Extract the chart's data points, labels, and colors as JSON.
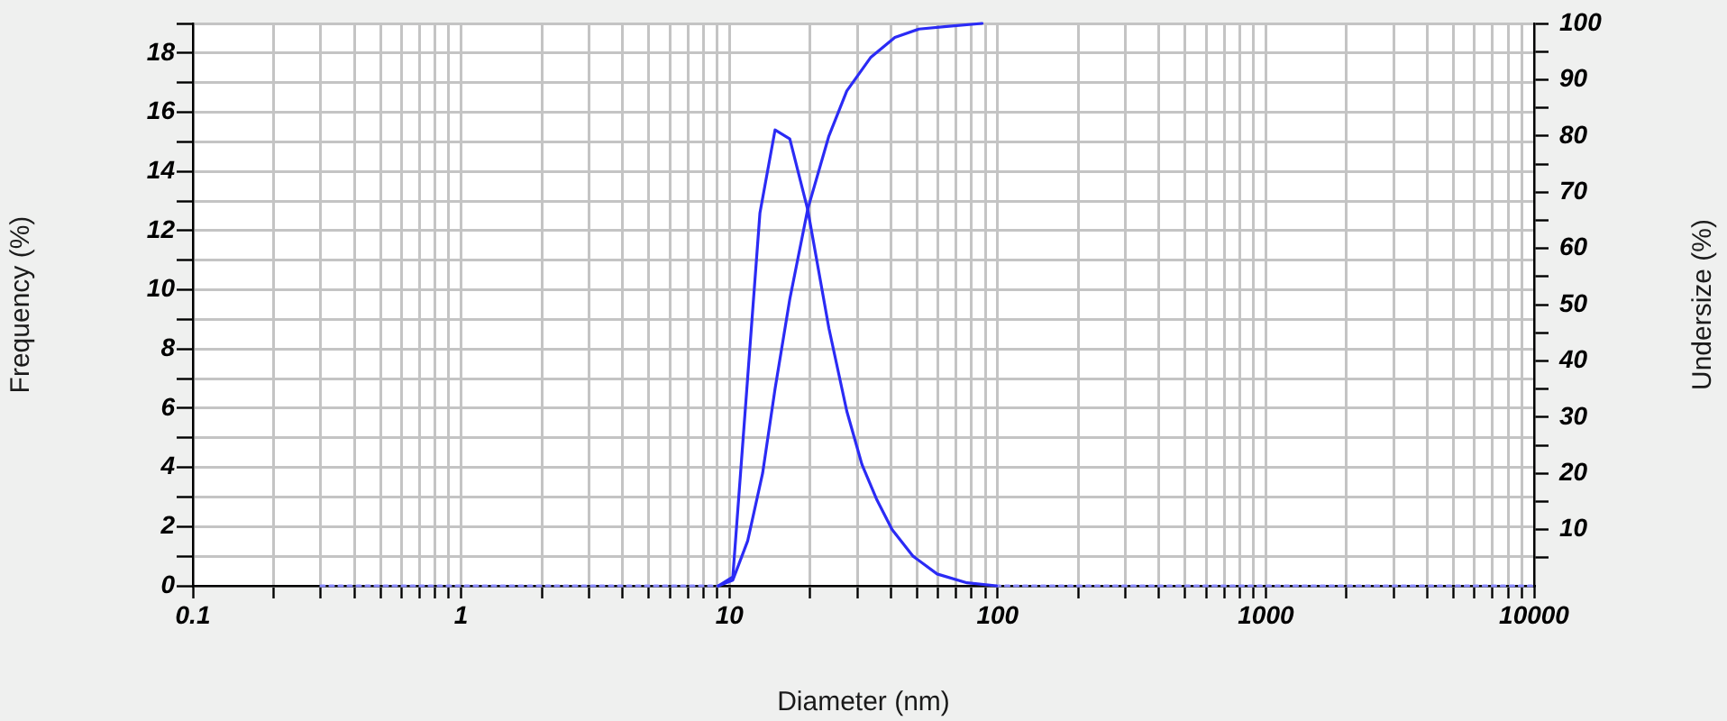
{
  "chart_data": {
    "type": "line",
    "xlabel": "Diameter (nm)",
    "ylabel": "Frequency (%)",
    "y2label": "Undersize (%)",
    "log": "x",
    "grid": true,
    "legend": false,
    "marker": "none",
    "xlim": [
      0.1,
      10000
    ],
    "xticks": [
      0.1,
      {
        "value": 0.2,
        "label": null
      },
      {
        "value": 0.3,
        "label": null
      },
      {
        "value": 0.4,
        "label": null
      },
      {
        "value": 0.5,
        "label": null
      },
      {
        "value": 0.6,
        "label": null
      },
      {
        "value": 0.7,
        "label": null
      },
      {
        "value": 0.8,
        "label": null
      },
      {
        "value": 0.9,
        "label": null
      },
      1,
      {
        "value": 2,
        "label": null
      },
      {
        "value": 3,
        "label": null
      },
      {
        "value": 4,
        "label": null
      },
      {
        "value": 5,
        "label": null
      },
      {
        "value": 6,
        "label": null
      },
      {
        "value": 7,
        "label": null
      },
      {
        "value": 8,
        "label": null
      },
      {
        "value": 9,
        "label": null
      },
      10,
      {
        "value": 20,
        "label": null
      },
      {
        "value": 30,
        "label": null
      },
      {
        "value": 40,
        "label": null
      },
      {
        "value": 50,
        "label": null
      },
      {
        "value": 60,
        "label": null
      },
      {
        "value": 70,
        "label": null
      },
      {
        "value": 80,
        "label": null
      },
      {
        "value": 90,
        "label": null
      },
      100,
      {
        "value": 200,
        "label": null
      },
      {
        "value": 300,
        "label": null
      },
      {
        "value": 400,
        "label": null
      },
      {
        "value": 500,
        "label": null
      },
      {
        "value": 600,
        "label": null
      },
      {
        "value": 700,
        "label": null
      },
      {
        "value": 800,
        "label": null
      },
      {
        "value": 900,
        "label": null
      },
      1000,
      {
        "value": 2000,
        "label": null
      },
      {
        "value": 3000,
        "label": null
      },
      {
        "value": 4000,
        "label": null
      },
      {
        "value": 5000,
        "label": null
      },
      {
        "value": 6000,
        "label": null
      },
      {
        "value": 7000,
        "label": null
      },
      {
        "value": 8000,
        "label": null
      },
      {
        "value": 9000,
        "label": null
      },
      10000
    ],
    "ylim": [
      0,
      19
    ],
    "yticks": [
      0,
      {
        "value": 1,
        "label": null
      },
      2,
      {
        "value": 3,
        "label": null
      },
      4,
      {
        "value": 5,
        "label": null
      },
      6,
      {
        "value": 7,
        "label": null
      },
      8,
      {
        "value": 9,
        "label": null
      },
      10,
      {
        "value": 11,
        "label": null
      },
      12,
      {
        "value": 13,
        "label": null
      },
      14,
      {
        "value": 15,
        "label": null
      },
      16,
      {
        "value": 17,
        "label": null
      },
      18,
      {
        "value": 19,
        "label": null
      }
    ],
    "y2lim": [
      0,
      100
    ],
    "y2ticks": [
      {
        "value": 5,
        "label": null
      },
      10,
      {
        "value": 15,
        "label": null
      },
      20,
      {
        "value": 25,
        "label": null
      },
      30,
      {
        "value": 35,
        "label": null
      },
      40,
      {
        "value": 45,
        "label": null
      },
      50,
      {
        "value": 55,
        "label": null
      },
      60,
      {
        "value": 65,
        "label": null
      },
      70,
      {
        "value": 75,
        "label": null
      },
      80,
      {
        "value": 85,
        "label": null
      },
      90,
      {
        "value": 95,
        "label": null
      },
      100
    ],
    "series": [
      {
        "color": "#2b2bf5",
        "x": [
          9.1,
          10.3,
          13.0,
          14.8,
          16.8,
          19.6,
          23.5,
          27.4,
          31.2,
          35.5,
          40.4,
          48.4,
          59.5,
          76.9,
          99
        ],
        "values": [
          0,
          0.3,
          12.6,
          15.4,
          15.1,
          12.7,
          8.7,
          5.9,
          4.1,
          2.9,
          1.9,
          1.0,
          0.4,
          0.1,
          0
        ]
      },
      {
        "axis": "y2",
        "color": "#2b2bf5",
        "x": [
          9.1,
          10.3,
          11.7,
          13.3,
          14.8,
          16.8,
          19.6,
          23.5,
          27.4,
          33.7,
          41.4,
          50.9,
          65.9,
          87.5
        ],
        "values": [
          0,
          1,
          8,
          20,
          35,
          51,
          67,
          80,
          88,
          94,
          97.5,
          99,
          99.5,
          100
        ]
      },
      {
        "color": "#8a8aff",
        "line_style": "dotted",
        "x": [
          0.3,
          9.1,
          30,
          99,
          10000
        ],
        "values": [
          0,
          0,
          null,
          0,
          0
        ]
      }
    ]
  }
}
